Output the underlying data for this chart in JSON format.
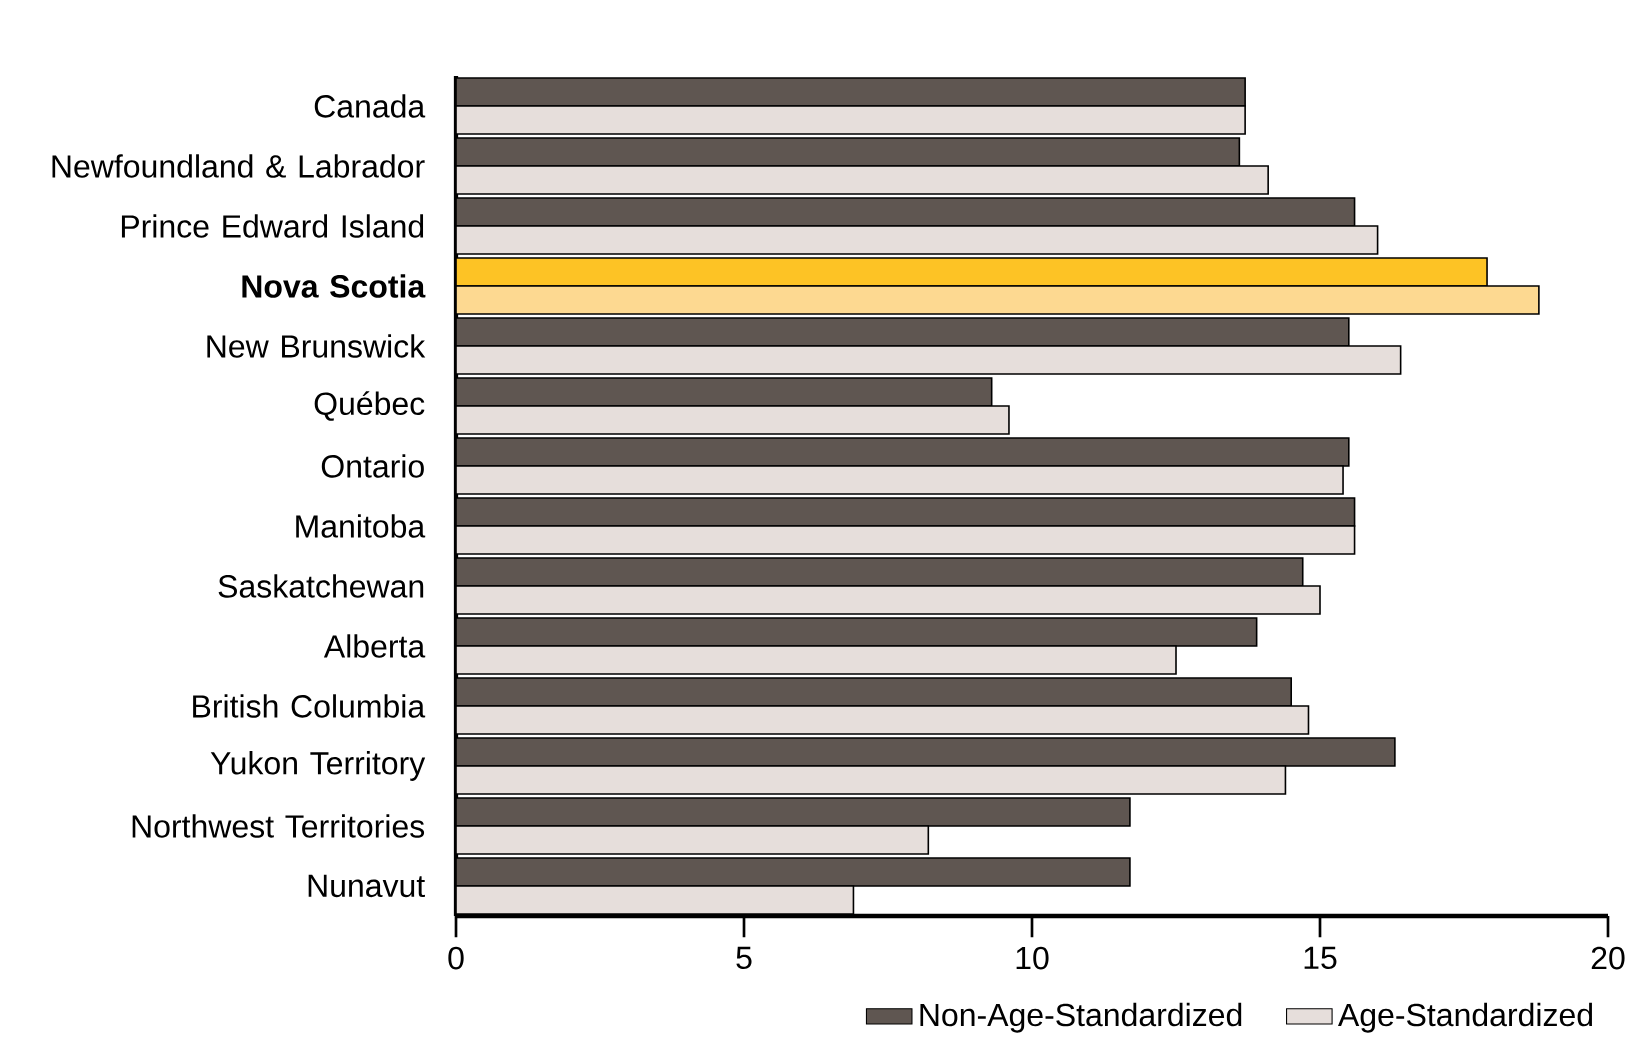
{
  "chart_data": {
    "type": "bar",
    "orientation": "horizontal",
    "categories": [
      "Canada",
      "Newfoundland & Labrador",
      "Prince Edward Island",
      "Nova Scotia",
      "New Brunswick",
      "Québec",
      "Ontario",
      "Manitoba",
      "Saskatchewan",
      "Alberta",
      "British Columbia",
      "Yukon Territory",
      "Northwest Territories",
      "Nunavut"
    ],
    "series": [
      {
        "name": "Non-Age-Standardized",
        "color": "#5f5651",
        "colors": [
          "#5f5651",
          "#5f5651",
          "#5f5651",
          "#fdc325",
          "#5f5651",
          "#5f5651",
          "#5f5651",
          "#5f5651",
          "#5f5651",
          "#5f5651",
          "#5f5651",
          "#5f5651",
          "#5f5651",
          "#5f5651"
        ],
        "values": [
          13.7,
          13.6,
          15.6,
          17.9,
          15.5,
          9.3,
          15.5,
          15.6,
          14.7,
          13.9,
          14.5,
          16.3,
          11.7,
          11.7
        ]
      },
      {
        "name": "Age-Standardized",
        "color": "#e6dedb",
        "colors": [
          "#e6dedb",
          "#e6dedb",
          "#e6dedb",
          "#fdd991",
          "#e6dedb",
          "#e6dedb",
          "#e6dedb",
          "#e6dedb",
          "#e6dedb",
          "#e6dedb",
          "#e6dedb",
          "#e6dedb",
          "#e6dedb",
          "#e6dedb"
        ],
        "values": [
          13.7,
          14.1,
          16.0,
          18.8,
          16.4,
          9.6,
          15.4,
          15.6,
          15.0,
          12.5,
          14.8,
          14.4,
          8.2,
          6.9
        ]
      }
    ],
    "xlim": [
      0,
      20
    ],
    "xticks": [
      0,
      5,
      10,
      15,
      20
    ],
    "grid": false,
    "legend": "bottom"
  }
}
